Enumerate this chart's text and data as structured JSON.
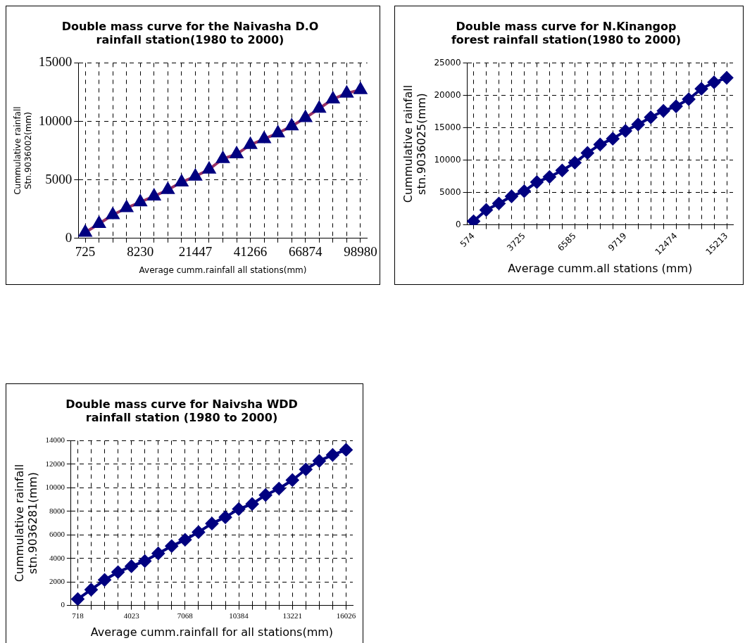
{
  "chart_data": [
    {
      "type": "line",
      "title": "Double mass curve for the Naivasha D.O\nrainfall station(1980 to 2000)",
      "xlabel": "Average cumm.rainfall all stations(mm)",
      "ylabel": "Cummulative rainfall\nStn.9036002(mm)",
      "categories": [
        "725",
        null,
        null,
        null,
        "8230",
        null,
        null,
        null,
        "21447",
        null,
        null,
        null,
        "41266",
        null,
        null,
        null,
        "66874",
        null,
        null,
        null,
        "98980"
      ],
      "series": [
        {
          "color": "#993366",
          "colors": [
            "#000080",
            "#000080",
            "#000080",
            "#000080",
            "#000080",
            "#000080",
            "#000080",
            "#000080",
            "#000080",
            "#000080",
            "#000080",
            "#000080",
            "#000080",
            "#000080",
            "#000080",
            "#000080",
            "#000080",
            "#000080",
            "#000080",
            "#000080",
            "#000080"
          ],
          "values": [
            500,
            1250,
            2000,
            2600,
            3100,
            3600,
            4150,
            4800,
            5300,
            5900,
            6800,
            7200,
            8000,
            8500,
            9000,
            9600,
            10300,
            11100,
            11900,
            12400,
            12700
          ]
        }
      ],
      "ylim": [
        0,
        15000
      ],
      "yticks": [
        0,
        5000,
        10000,
        15000
      ],
      "grid": true,
      "marker": "triangle",
      "line_style": "solid",
      "legend": false
    },
    {
      "type": "line",
      "title": "Double mass curve for N.Kinangop\nforest rainfall station(1980 to 2000)",
      "xlabel": "Average cumm.all stations (mm)",
      "ylabel": "Cummulative rainfall\nstn.9036025(mm)",
      "categories": [
        "574",
        null,
        null,
        null,
        "3725",
        null,
        null,
        null,
        "6585",
        null,
        null,
        null,
        "9719",
        null,
        null,
        null,
        "12474",
        null,
        null,
        null,
        "15213"
      ],
      "series": [
        {
          "color": "#000080",
          "values": [
            560,
            2300,
            3300,
            4400,
            5200,
            6600,
            7400,
            8400,
            9600,
            11100,
            12400,
            13300,
            14500,
            15500,
            16600,
            17600,
            18300,
            19400,
            21000,
            22000,
            22700
          ]
        }
      ],
      "ylim": [
        0,
        25000
      ],
      "yticks": [
        0,
        5000,
        10000,
        15000,
        20000,
        25000
      ],
      "grid": true,
      "marker": "diamond",
      "line_style": "solid",
      "legend": false
    },
    {
      "type": "line",
      "title": "Double mass curve for Naivsha WDD\nrainfall station (1980 to 2000)",
      "xlabel": "Average cumm.rainfall for all stations(mm)",
      "ylabel": "Cummulative rainfall\nstn.9036281(mm)",
      "categories": [
        "718",
        null,
        null,
        null,
        "4023",
        null,
        null,
        null,
        "7068",
        null,
        null,
        null,
        "10384",
        null,
        null,
        null,
        "13221",
        null,
        null,
        null,
        "16026"
      ],
      "series": [
        {
          "color": "#000080",
          "values": [
            540,
            1340,
            2170,
            2830,
            3330,
            3770,
            4420,
            5040,
            5580,
            6230,
            6960,
            7500,
            8190,
            8620,
            9380,
            9930,
            10650,
            11560,
            12280,
            12790,
            13220
          ]
        }
      ],
      "ylim": [
        0,
        14000
      ],
      "yticks": [
        0,
        2000,
        4000,
        6000,
        8000,
        10000,
        12000,
        14000
      ],
      "grid": true,
      "marker": "diamond",
      "line_style": "solid",
      "legend": false
    }
  ]
}
